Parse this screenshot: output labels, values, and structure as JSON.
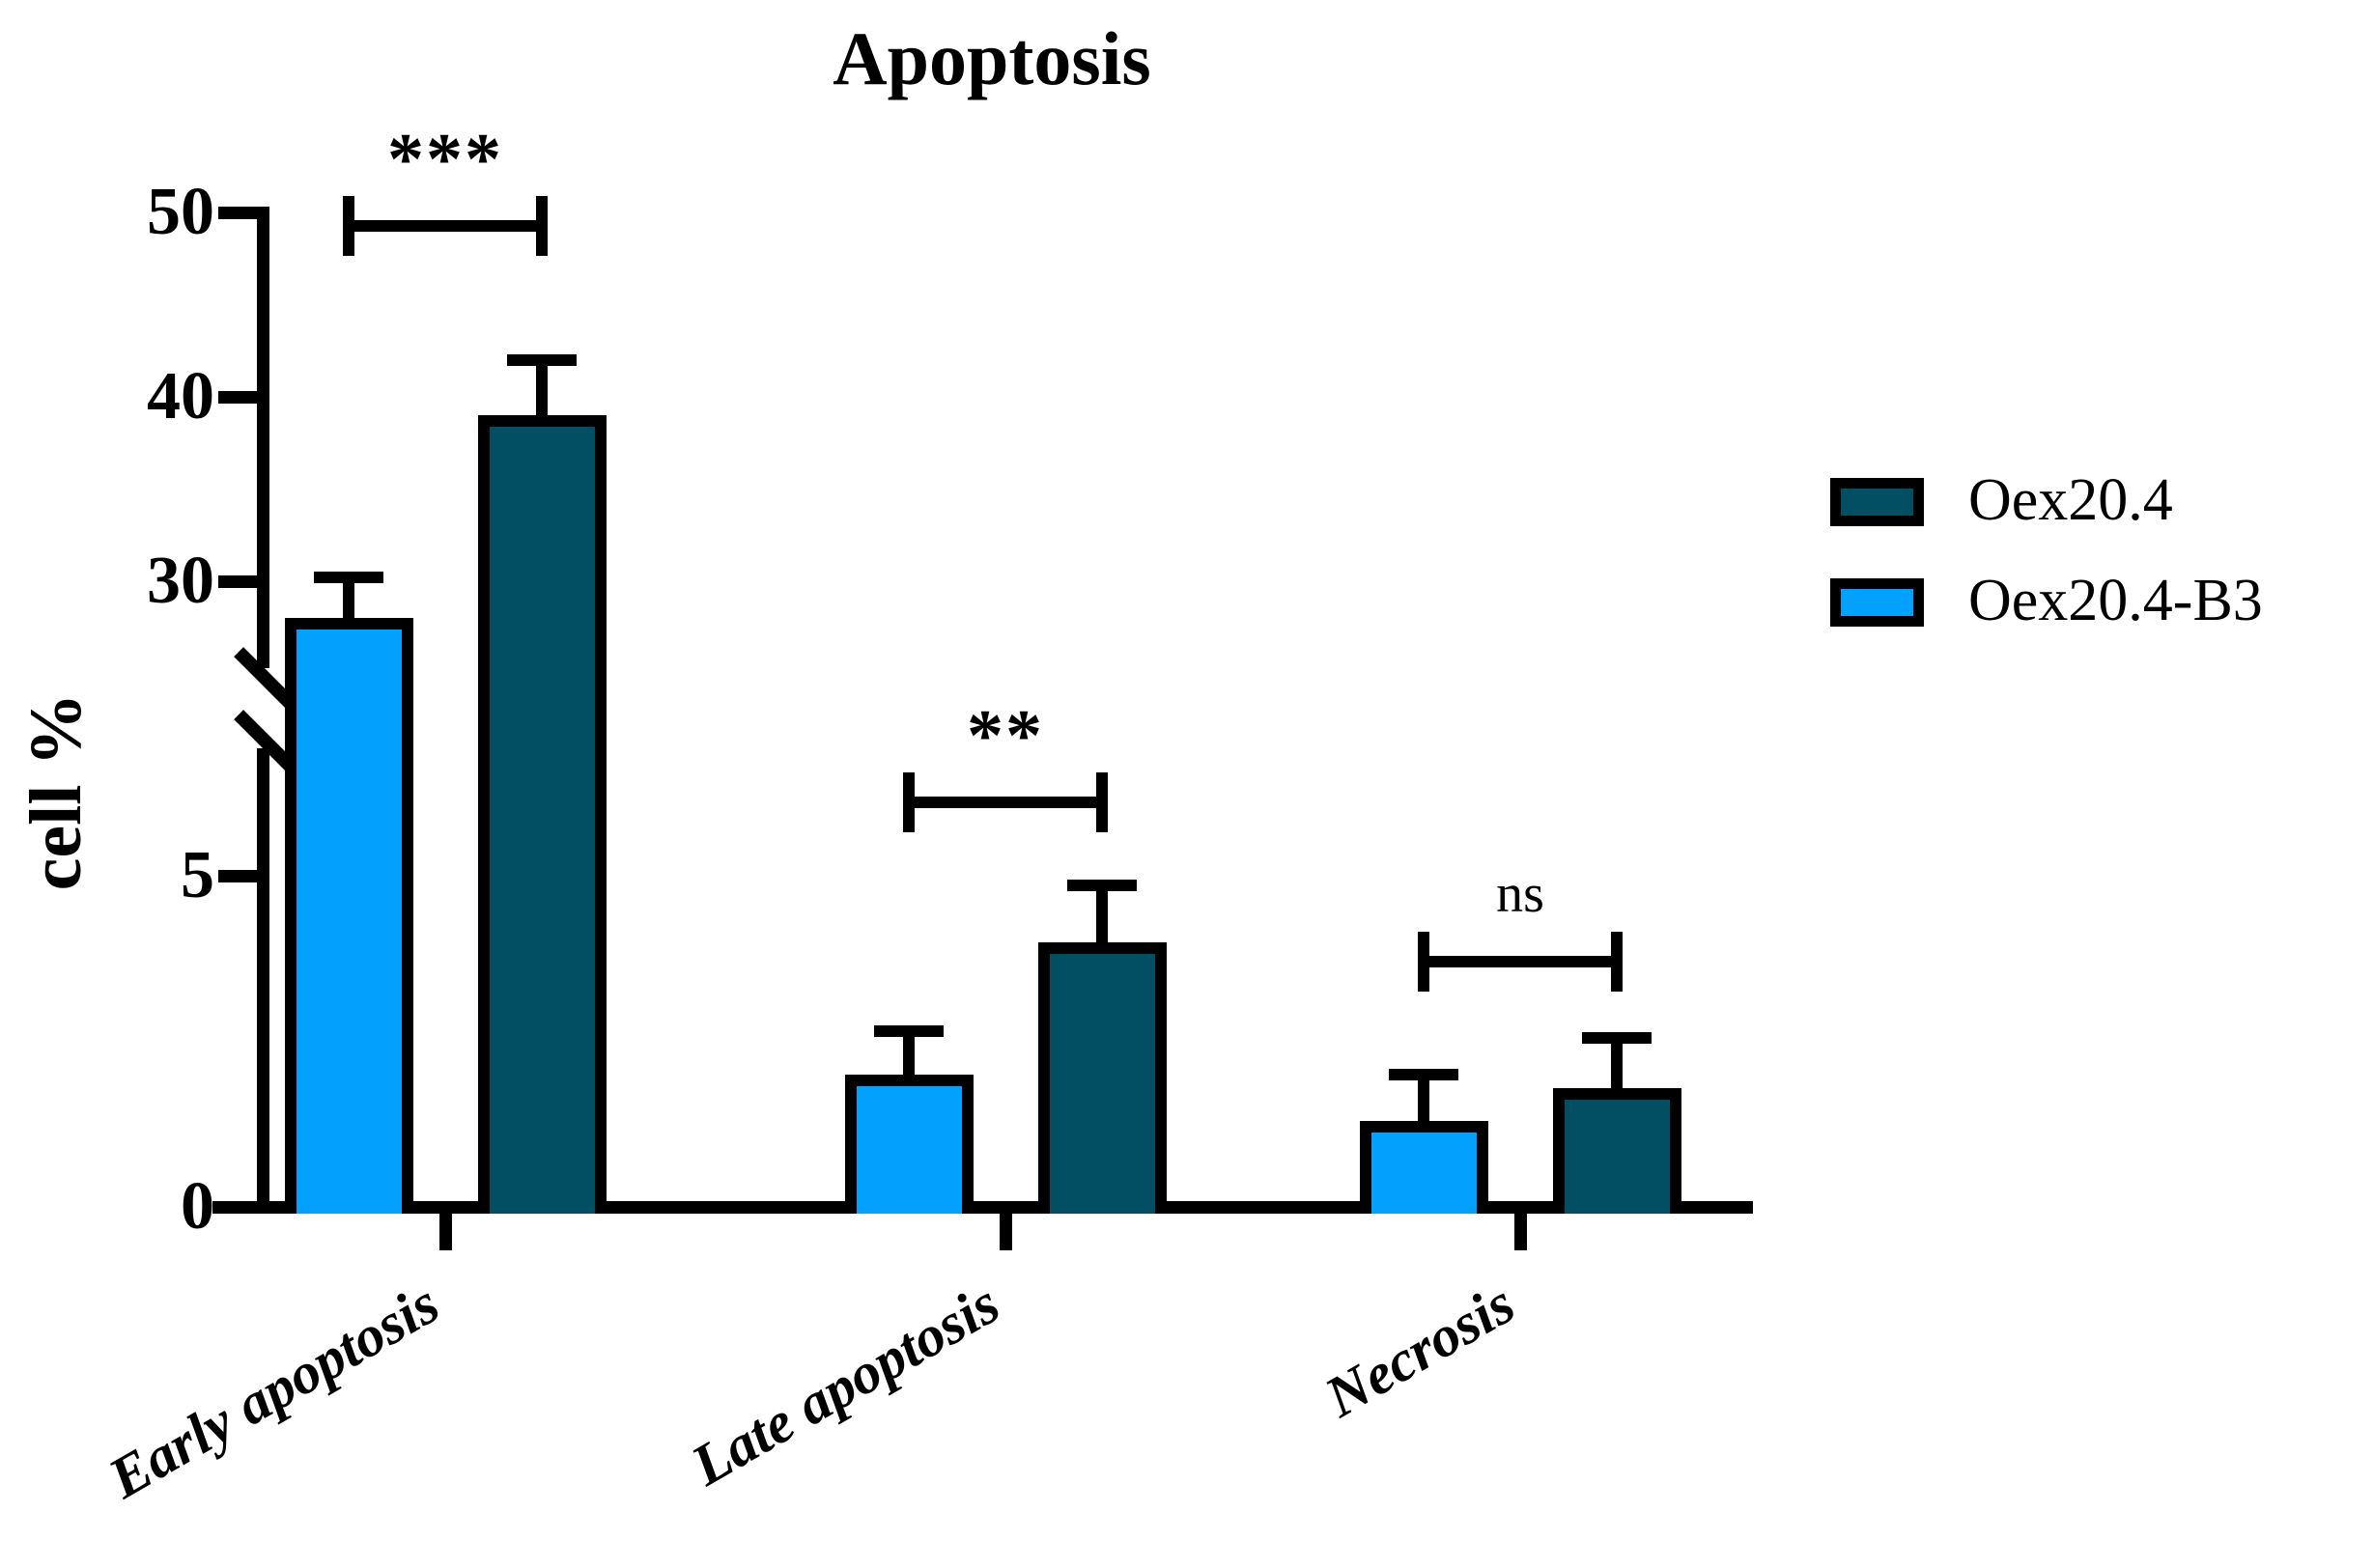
{
  "title": "Apoptosis",
  "y_axis": {
    "label": "cell %"
  },
  "legend": [
    {
      "label": "Oex20.4",
      "color": "#024F63"
    },
    {
      "label": "Oex20.4-B3",
      "color": "#04A0FD"
    }
  ],
  "chart_data": {
    "type": "bar",
    "title": "Apoptosis",
    "xlabel": "",
    "ylabel": "cell %",
    "categories": [
      "Early apoptosis",
      "Late apoptosis",
      "Necrosis"
    ],
    "series": [
      {
        "name": "Oex20.4-B3",
        "color": "#04A0FD",
        "values": [
          28,
          2,
          1.3
        ],
        "error_plus": [
          2.2,
          0.65,
          0.7
        ]
      },
      {
        "name": "Oex20.4",
        "color": "#024F63",
        "values": [
          39,
          4,
          1.8
        ],
        "error_plus": [
          3,
          0.85,
          0.75
        ]
      }
    ],
    "significance": [
      {
        "category": "Early apoptosis",
        "label": "***"
      },
      {
        "category": "Late apoptosis",
        "label": "**"
      },
      {
        "category": "Necrosis",
        "label": "ns"
      }
    ],
    "axis_break": {
      "lower_range": [
        0,
        6
      ],
      "upper_range": [
        25,
        50
      ]
    },
    "y_ticks_upper": [
      50,
      40,
      30
    ],
    "y_ticks_lower": [
      5,
      0
    ],
    "legend_position": "right",
    "grid": false
  }
}
